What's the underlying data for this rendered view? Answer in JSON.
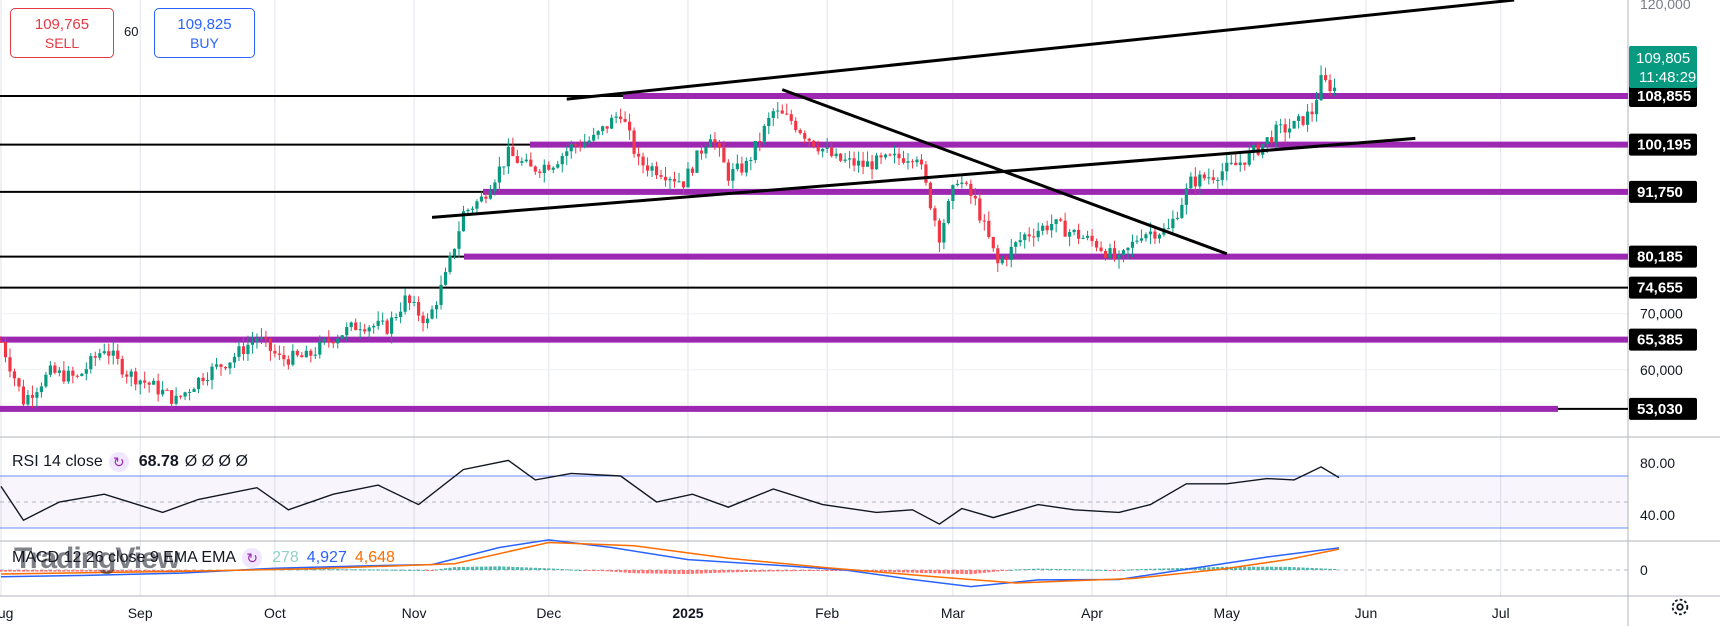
{
  "trade": {
    "sell_price": "109,765",
    "sell_label": "SELL",
    "buy_price": "109,825",
    "buy_label": "BUY",
    "spread": "60"
  },
  "price_axis": {
    "top_partial": "120,000",
    "ticks": [
      "70,000",
      "60,000"
    ],
    "current_price": "109,805",
    "countdown": "11:48:29"
  },
  "rsi": {
    "label": "RSI 14 close",
    "value": "68.78",
    "placeholders": "Ø Ø Ø Ø",
    "ticks": [
      "80.00",
      "40.00"
    ]
  },
  "macd": {
    "label": "MACD 12 26 close 9 EMA EMA",
    "histogram": "278",
    "macd_value": "4,927",
    "signal_value": "4,648",
    "ticks": [
      "0"
    ]
  },
  "watermark": "TradingView",
  "colors": {
    "level_purple": "#9c27b0",
    "trendline": "#000000",
    "up_candle": "#089981",
    "down_candle": "#f23645",
    "sell": "#e53945",
    "buy": "#2962ff",
    "current_price_label": "#089981"
  },
  "chart_data": {
    "type": "candlestick",
    "instrument_timeframe": "1D",
    "x_axis_labels": [
      "Aug",
      "Sep",
      "Oct",
      "Nov",
      "Dec",
      "2025",
      "Feb",
      "Mar",
      "Apr",
      "May",
      "Jun",
      "Jul"
    ],
    "y_range": [
      48000,
      126000
    ],
    "levels": [
      {
        "price": 108855,
        "label": "108,855"
      },
      {
        "price": 100195,
        "label": "100,195"
      },
      {
        "price": 91750,
        "label": "91,750"
      },
      {
        "price": 80185,
        "label": "80,185"
      },
      {
        "price": 74655,
        "label": "74,655"
      },
      {
        "price": 65385,
        "label": "65,385"
      },
      {
        "price": 53030,
        "label": "53,030"
      }
    ],
    "trendlines": [
      {
        "from": [
          "2024-12-05",
          108300
        ],
        "to": [
          "2025-07-04",
          126000
        ]
      },
      {
        "from": [
          "2024-11-05",
          87200
        ],
        "to": [
          "2025-06-12",
          101300
        ]
      },
      {
        "from": [
          "2025-01-22",
          110000
        ],
        "to": [
          "2025-05-01",
          80700
        ]
      }
    ],
    "price_series": [
      [
        "2024-08-01",
        65000
      ],
      [
        "2024-08-06",
        54500
      ],
      [
        "2024-08-12",
        59500
      ],
      [
        "2024-08-18",
        58500
      ],
      [
        "2024-08-24",
        64000
      ],
      [
        "2024-08-29",
        59500
      ],
      [
        "2024-09-04",
        57000
      ],
      [
        "2024-09-09",
        54500
      ],
      [
        "2024-09-15",
        59000
      ],
      [
        "2024-09-21",
        61800
      ],
      [
        "2024-09-27",
        65800
      ],
      [
        "2024-10-02",
        62000
      ],
      [
        "2024-10-08",
        62200
      ],
      [
        "2024-10-14",
        65800
      ],
      [
        "2024-10-20",
        68200
      ],
      [
        "2024-10-26",
        67500
      ],
      [
        "2024-10-30",
        72500
      ],
      [
        "2024-11-04",
        68500
      ],
      [
        "2024-11-08",
        76500
      ],
      [
        "2024-11-12",
        88000
      ],
      [
        "2024-11-16",
        90500
      ],
      [
        "2024-11-22",
        98500
      ],
      [
        "2024-11-27",
        95800
      ],
      [
        "2024-12-02",
        97000
      ],
      [
        "2024-12-06",
        99800
      ],
      [
        "2024-12-11",
        101200
      ],
      [
        "2024-12-17",
        106000
      ],
      [
        "2024-12-21",
        97000
      ],
      [
        "2024-12-26",
        95500
      ],
      [
        "2024-12-31",
        93500
      ],
      [
        "2025-01-06",
        102200
      ],
      [
        "2025-01-10",
        94700
      ],
      [
        "2025-01-14",
        96500
      ],
      [
        "2025-01-20",
        106000
      ],
      [
        "2025-01-24",
        104500
      ],
      [
        "2025-01-28",
        101300
      ],
      [
        "2025-02-03",
        97500
      ],
      [
        "2025-02-09",
        96500
      ],
      [
        "2025-02-15",
        97500
      ],
      [
        "2025-02-21",
        98500
      ],
      [
        "2025-02-26",
        84000
      ],
      [
        "2025-03-02",
        94300
      ],
      [
        "2025-03-06",
        89900
      ],
      [
        "2025-03-11",
        78800
      ],
      [
        "2025-03-17",
        84000
      ],
      [
        "2025-03-23",
        86100
      ],
      [
        "2025-03-28",
        84300
      ],
      [
        "2025-04-02",
        82500
      ],
      [
        "2025-04-07",
        79200
      ],
      [
        "2025-04-12",
        84500
      ],
      [
        "2025-04-18",
        84900
      ],
      [
        "2025-04-23",
        93500
      ],
      [
        "2025-04-28",
        94800
      ],
      [
        "2025-05-03",
        96500
      ],
      [
        "2025-05-08",
        99500
      ],
      [
        "2025-05-12",
        102500
      ],
      [
        "2025-05-16",
        103500
      ],
      [
        "2025-05-20",
        106000
      ],
      [
        "2025-05-22",
        111500
      ],
      [
        "2025-05-26",
        109805
      ]
    ],
    "rsi_series": [
      [
        "2024-08-01",
        62
      ],
      [
        "2024-08-06",
        36
      ],
      [
        "2024-08-14",
        50
      ],
      [
        "2024-08-24",
        56
      ],
      [
        "2024-09-06",
        42
      ],
      [
        "2024-09-14",
        52
      ],
      [
        "2024-09-27",
        61
      ],
      [
        "2024-10-04",
        44
      ],
      [
        "2024-10-14",
        56
      ],
      [
        "2024-10-24",
        63
      ],
      [
        "2024-11-02",
        48
      ],
      [
        "2024-11-12",
        75
      ],
      [
        "2024-11-22",
        82
      ],
      [
        "2024-11-28",
        67
      ],
      [
        "2024-12-06",
        72
      ],
      [
        "2024-12-17",
        70
      ],
      [
        "2024-12-25",
        50
      ],
      [
        "2025-01-02",
        56
      ],
      [
        "2025-01-10",
        46
      ],
      [
        "2025-01-20",
        60
      ],
      [
        "2025-01-31",
        48
      ],
      [
        "2025-02-12",
        42
      ],
      [
        "2025-02-20",
        44
      ],
      [
        "2025-02-26",
        33
      ],
      [
        "2025-03-03",
        45
      ],
      [
        "2025-03-10",
        38
      ],
      [
        "2025-03-20",
        48
      ],
      [
        "2025-03-28",
        44
      ],
      [
        "2025-04-07",
        42
      ],
      [
        "2025-04-14",
        48
      ],
      [
        "2025-04-22",
        64
      ],
      [
        "2025-05-01",
        64
      ],
      [
        "2025-05-10",
        68
      ],
      [
        "2025-05-16",
        67
      ],
      [
        "2025-05-22",
        77
      ],
      [
        "2025-05-26",
        68.78
      ]
    ],
    "macd_series": [
      [
        "2024-08-01",
        -1500
      ],
      [
        "2024-08-20",
        -1200
      ],
      [
        "2024-09-10",
        -700
      ],
      [
        "2024-10-01",
        400
      ],
      [
        "2024-10-20",
        900
      ],
      [
        "2024-11-05",
        1200
      ],
      [
        "2024-11-20",
        5000
      ],
      [
        "2024-12-01",
        6700
      ],
      [
        "2024-12-15",
        5000
      ],
      [
        "2025-01-01",
        2300
      ],
      [
        "2025-01-20",
        1100
      ],
      [
        "2025-02-05",
        0
      ],
      [
        "2025-02-20",
        -2100
      ],
      [
        "2025-03-05",
        -3700
      ],
      [
        "2025-03-20",
        -2200
      ],
      [
        "2025-04-07",
        -2100
      ],
      [
        "2025-04-25",
        600
      ],
      [
        "2025-05-10",
        2900
      ],
      [
        "2025-05-26",
        4927
      ]
    ],
    "signal_series": [
      [
        "2024-08-01",
        -900
      ],
      [
        "2024-09-10",
        -300
      ],
      [
        "2024-10-10",
        300
      ],
      [
        "2024-11-10",
        1400
      ],
      [
        "2024-12-01",
        6100
      ],
      [
        "2024-12-20",
        5400
      ],
      [
        "2025-01-10",
        2600
      ],
      [
        "2025-02-01",
        500
      ],
      [
        "2025-02-25",
        -1500
      ],
      [
        "2025-03-15",
        -2900
      ],
      [
        "2025-04-10",
        -1900
      ],
      [
        "2025-04-30",
        200
      ],
      [
        "2025-05-15",
        2400
      ],
      [
        "2025-05-26",
        4648
      ]
    ]
  }
}
